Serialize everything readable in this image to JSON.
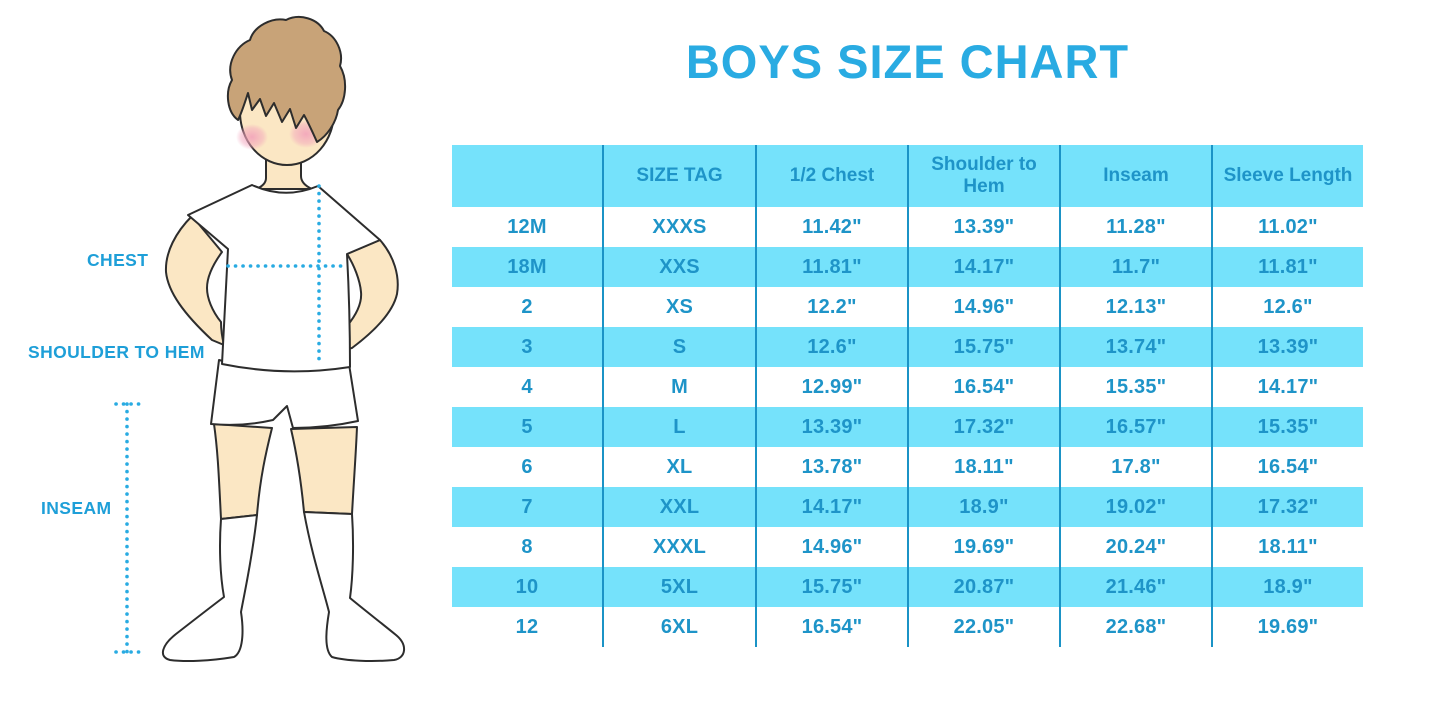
{
  "page": {
    "title": "BOYS SIZE CHART"
  },
  "colors": {
    "title_blue": "#29ABE2",
    "label_blue": "#1E9FD8",
    "table_text": "#1E94C8",
    "band_cyan": "#75E2FB",
    "grid_line": "#1B93C6",
    "dotted_line": "#29ABE2",
    "outline": "#2d2d2d",
    "skin": "#FBE7C4",
    "hair": "#C8A378",
    "blush": "#F2A3BB",
    "garment_white": "#FFFFFF"
  },
  "figure": {
    "labels": {
      "chest": "CHEST",
      "shoulder_to_hem": "SHOULDER TO HEM",
      "inseam": "INSEAM"
    }
  },
  "chart_data": {
    "type": "table",
    "title": "BOYS SIZE CHART",
    "columns": [
      "",
      "SIZE TAG",
      "1/2 Chest",
      "Shoulder to Hem",
      "Inseam",
      "Sleeve Length"
    ],
    "rows": [
      [
        "12M",
        "XXXS",
        "11.42\"",
        "13.39\"",
        "11.28\"",
        "11.02\""
      ],
      [
        "18M",
        "XXS",
        "11.81\"",
        "14.17\"",
        "11.7\"",
        "11.81\""
      ],
      [
        "2",
        "XS",
        "12.2\"",
        "14.96\"",
        "12.13\"",
        "12.6\""
      ],
      [
        "3",
        "S",
        "12.6\"",
        "15.75\"",
        "13.74\"",
        "13.39\""
      ],
      [
        "4",
        "M",
        "12.99\"",
        "16.54\"",
        "15.35\"",
        "14.17\""
      ],
      [
        "5",
        "L",
        "13.39\"",
        "17.32\"",
        "16.57\"",
        "15.35\""
      ],
      [
        "6",
        "XL",
        "13.78\"",
        "18.11\"",
        "17.8\"",
        "16.54\""
      ],
      [
        "7",
        "XXL",
        "14.17\"",
        "18.9\"",
        "19.02\"",
        "17.32\""
      ],
      [
        "8",
        "XXXL",
        "14.96\"",
        "19.69\"",
        "20.24\"",
        "18.11\""
      ],
      [
        "10",
        "5XL",
        "15.75\"",
        "20.87\"",
        "21.46\"",
        "18.9\""
      ],
      [
        "12",
        "6XL",
        "16.54\"",
        "22.05\"",
        "22.68\"",
        "19.69\""
      ]
    ],
    "row_banding": "alternating white/cyan starting white",
    "units": "inches"
  }
}
